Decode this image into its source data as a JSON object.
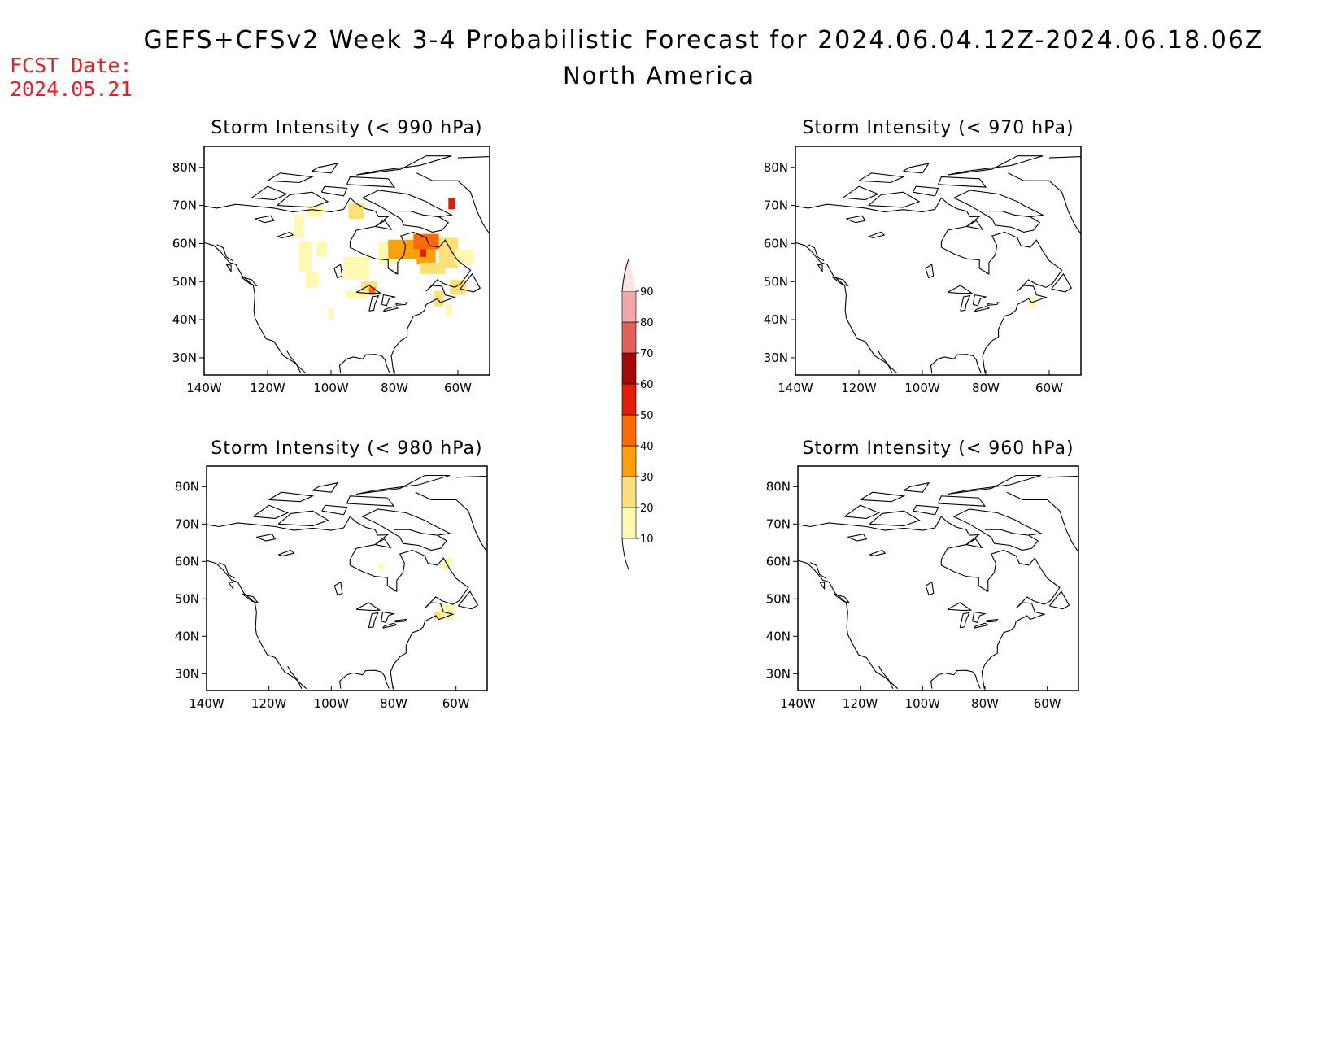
{
  "header": {
    "title": "GEFS+CFSv2 Week 3-4 Probabilistic Forecast for 2024.06.04.12Z-2024.06.18.06Z",
    "subtitle": "North America",
    "fcst_label": "FCST Date:",
    "fcst_date": "2024.05.21"
  },
  "colorbar": {
    "levels": [
      10,
      20,
      30,
      40,
      50,
      60,
      70,
      80,
      90
    ],
    "colors": [
      "#fff8b0",
      "#fde07a",
      "#fca00a",
      "#fb6a04",
      "#e51b08",
      "#a40a04",
      "#e0605c",
      "#f3a7a8",
      "#fde4e4"
    ]
  },
  "chart_data": [
    {
      "type": "heatmap",
      "title": "Storm Intensity (< 990 hPa)",
      "lon_ticks": [
        "140W",
        "120W",
        "100W",
        "80W",
        "60W"
      ],
      "lat_ticks": [
        "80N",
        "70N",
        "60N",
        "50N",
        "40N",
        "30N"
      ],
      "cells": [
        {
          "lon": -105,
          "lat": 68,
          "w": 5,
          "h": 3,
          "v": 15
        },
        {
          "lon": -110,
          "lat": 64,
          "w": 3,
          "h": 6,
          "v": 15
        },
        {
          "lon": -108,
          "lat": 56,
          "w": 4,
          "h": 8,
          "v": 15
        },
        {
          "lon": -103,
          "lat": 58,
          "w": 3,
          "h": 4,
          "v": 15
        },
        {
          "lon": -106,
          "lat": 50,
          "w": 4,
          "h": 4,
          "v": 15
        },
        {
          "lon": -92,
          "lat": 68,
          "w": 5,
          "h": 4,
          "v": 25
        },
        {
          "lon": -92,
          "lat": 53,
          "w": 8,
          "h": 6,
          "v": 15
        },
        {
          "lon": -88,
          "lat": 48,
          "w": 5,
          "h": 3,
          "v": 25
        },
        {
          "lon": -87,
          "lat": 47,
          "w": 2,
          "h": 2,
          "v": 45
        },
        {
          "lon": -92,
          "lat": 46,
          "w": 7,
          "h": 2,
          "v": 15
        },
        {
          "lon": -82,
          "lat": 57,
          "w": 6,
          "h": 6,
          "v": 15
        },
        {
          "lon": -77,
          "lat": 58,
          "w": 10,
          "h": 5,
          "v": 35
        },
        {
          "lon": -70,
          "lat": 60,
          "w": 8,
          "h": 4,
          "v": 45
        },
        {
          "lon": -70,
          "lat": 56,
          "w": 6,
          "h": 4,
          "v": 35
        },
        {
          "lon": -68,
          "lat": 53,
          "w": 8,
          "h": 3,
          "v": 25
        },
        {
          "lon": -63,
          "lat": 57,
          "w": 6,
          "h": 8,
          "v": 25
        },
        {
          "lon": -58,
          "lat": 56,
          "w": 6,
          "h": 4,
          "v": 15
        },
        {
          "lon": -60,
          "lat": 48,
          "w": 5,
          "h": 4,
          "v": 25
        },
        {
          "lon": -62,
          "lat": 70,
          "w": 2,
          "h": 3,
          "v": 55
        },
        {
          "lon": -71,
          "lat": 57,
          "w": 2,
          "h": 2,
          "v": 55
        },
        {
          "lon": -66,
          "lat": 45,
          "w": 3,
          "h": 4,
          "v": 25
        },
        {
          "lon": -63,
          "lat": 42,
          "w": 2,
          "h": 3,
          "v": 15
        },
        {
          "lon": -100,
          "lat": 41,
          "w": 1.5,
          "h": 3,
          "v": 15
        }
      ]
    },
    {
      "type": "heatmap",
      "title": "Storm Intensity (< 970 hPa)",
      "lon_ticks": [
        "140W",
        "120W",
        "100W",
        "80W",
        "60W"
      ],
      "lat_ticks": [
        "80N",
        "70N",
        "60N",
        "50N",
        "40N",
        "30N"
      ],
      "cells": [
        {
          "lon": -65,
          "lat": 44,
          "w": 2,
          "h": 3,
          "v": 15
        }
      ]
    },
    {
      "type": "heatmap",
      "title": "Storm Intensity (< 980 hPa)",
      "lon_ticks": [
        "140W",
        "120W",
        "100W",
        "80W",
        "60W"
      ],
      "lat_ticks": [
        "80N",
        "70N",
        "60N",
        "50N",
        "40N",
        "30N"
      ],
      "cells": [
        {
          "lon": -63,
          "lat": 59,
          "w": 3,
          "h": 3,
          "v": 15
        },
        {
          "lon": -84,
          "lat": 58,
          "w": 1.5,
          "h": 2,
          "v": 15
        },
        {
          "lon": -63,
          "lat": 46,
          "w": 5,
          "h": 4,
          "v": 15
        },
        {
          "lon": -66,
          "lat": 45,
          "w": 2,
          "h": 2,
          "v": 25
        }
      ]
    },
    {
      "type": "heatmap",
      "title": "Storm Intensity (< 960 hPa)",
      "lon_ticks": [
        "140W",
        "120W",
        "100W",
        "80W",
        "60W"
      ],
      "lat_ticks": [
        "80N",
        "70N",
        "60N",
        "50N",
        "40N",
        "30N"
      ],
      "cells": []
    }
  ]
}
